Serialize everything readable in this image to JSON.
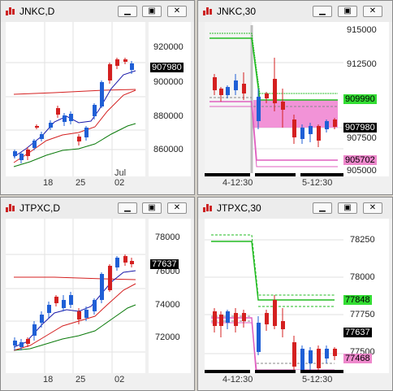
{
  "windows": {
    "jnkc_daily": {
      "title": "JNKC,D",
      "price_labels": [
        "920000",
        "900000",
        "880000",
        "860000"
      ],
      "current_price": "907980",
      "x_labels": [
        "18",
        "25",
        "Jul",
        "02"
      ]
    },
    "jnkc_30": {
      "title": "JNKC,30",
      "price_labels": [
        "915000",
        "912500",
        "907500",
        "905000"
      ],
      "upper_tag": "909990",
      "current_price": "907980",
      "lower_tag": "905702",
      "x_labels": [
        "4-12:30",
        "5-12:30"
      ]
    },
    "jtpxc_daily": {
      "title": "JTPXC,D",
      "price_labels": [
        "78000",
        "76000",
        "74000",
        "72000"
      ],
      "current_price": "77637",
      "x_labels": [
        "18",
        "25",
        "02"
      ]
    },
    "jtpxc_30": {
      "title": "JTPXC,30",
      "price_labels": [
        "78250",
        "78000",
        "77750",
        "77500"
      ],
      "upper_tag": "77848",
      "current_price": "77637",
      "lower_tag": "77468",
      "x_labels": [
        "4-12:30",
        "5-12:30"
      ]
    }
  },
  "colors": {
    "up_candle": "#1f5fd6",
    "down_candle": "#d42020",
    "current_tag_bg": "#000000",
    "upper_tag_bg": "#33dd33",
    "lower_tag_bg": "#ee88cc",
    "box_fill": "#f080d0"
  },
  "icons": [
    "chart-app-icon",
    "minimize-icon",
    "restore-icon",
    "close-icon"
  ]
}
